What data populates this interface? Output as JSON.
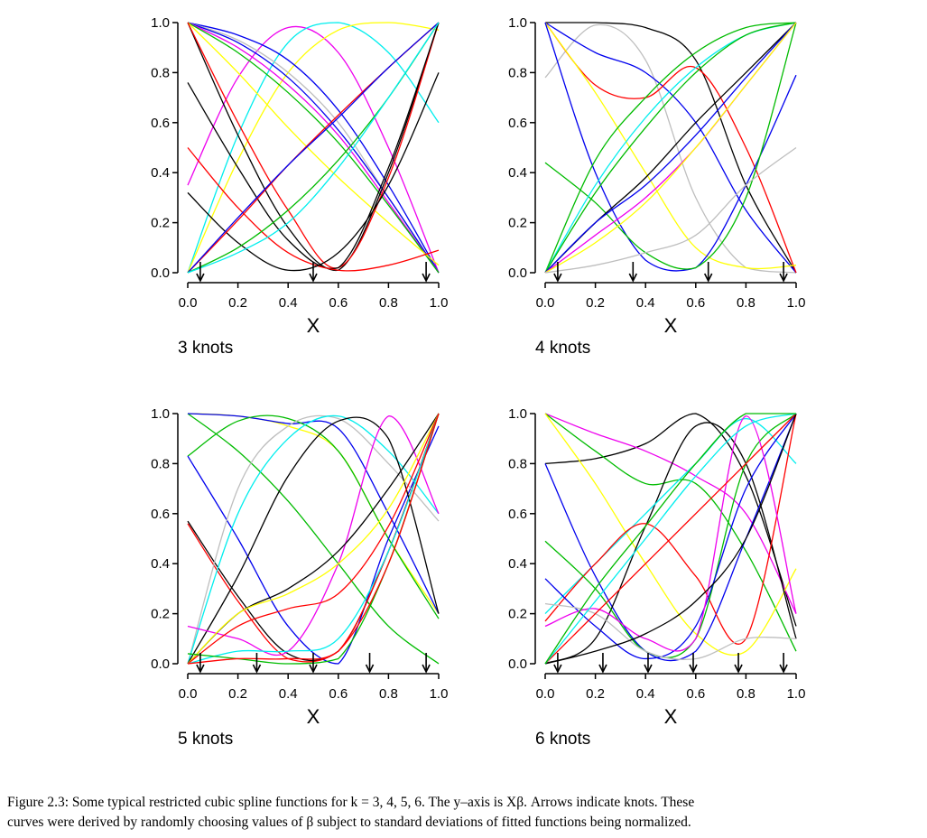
{
  "caption": {
    "line1": "Figure 2.3: Some typical restricted cubic spline functions for k = 3, 4, 5, 6. The y–axis is Xβ. Arrows indicate knots. These",
    "line2": "curves were derived by randomly choosing values of β subject to standard deviations of fitted functions being normalized."
  },
  "colors": {
    "black": "#000000",
    "red": "#ff0000",
    "green": "#00bb00",
    "blue": "#0000ee",
    "cyan": "#00eeee",
    "magenta": "#ee00ee",
    "yellow": "#ffff00",
    "gray": "#bebebe"
  },
  "chart_data": [
    {
      "type": "line",
      "title": "3 knots",
      "xlabel": "X",
      "ylabel": "",
      "xlim": [
        0,
        1
      ],
      "ylim": [
        0,
        1
      ],
      "xticks": [
        "0.0",
        "0.2",
        "0.4",
        "0.6",
        "0.8",
        "1.0"
      ],
      "yticks": [
        "0.0",
        "0.2",
        "0.4",
        "0.6",
        "0.8",
        "1.0"
      ],
      "knots": [
        0.05,
        0.5,
        0.95
      ],
      "x": [
        0,
        0.2,
        0.4,
        0.6,
        0.8,
        1.0
      ],
      "series": [
        {
          "color": "magenta",
          "values": [
            0.35,
            0.78,
            0.98,
            0.88,
            0.5,
            0.0
          ]
        },
        {
          "color": "cyan",
          "values": [
            0,
            0.55,
            0.92,
            1.0,
            0.88,
            0.6
          ]
        },
        {
          "color": "yellow",
          "values": [
            0,
            0.45,
            0.8,
            0.97,
            1.0,
            0.97
          ]
        },
        {
          "color": "blue",
          "values": [
            1,
            0.95,
            0.85,
            0.65,
            0.35,
            0
          ]
        },
        {
          "color": "gray",
          "values": [
            1,
            0.93,
            0.8,
            0.6,
            0.3,
            0
          ]
        },
        {
          "color": "blue",
          "values": [
            1,
            0.92,
            0.78,
            0.57,
            0.3,
            0
          ]
        },
        {
          "color": "magenta",
          "values": [
            1,
            0.9,
            0.75,
            0.55,
            0.28,
            0
          ]
        },
        {
          "color": "green",
          "values": [
            1,
            0.88,
            0.72,
            0.52,
            0.27,
            0
          ]
        },
        {
          "color": "yellow",
          "values": [
            1,
            0.8,
            0.58,
            0.38,
            0.2,
            0.03
          ]
        },
        {
          "color": "black",
          "values": [
            1,
            0.55,
            0.18,
            0.01,
            0.4,
            1
          ]
        },
        {
          "color": "red",
          "values": [
            1,
            0.6,
            0.25,
            0.02,
            0.38,
            1
          ]
        },
        {
          "color": "black",
          "values": [
            0.76,
            0.42,
            0.13,
            0.02,
            0.42,
            1
          ]
        },
        {
          "color": "red",
          "values": [
            0.5,
            0.26,
            0.08,
            0.01,
            0.03,
            0.09
          ]
        },
        {
          "color": "black",
          "values": [
            0.32,
            0.12,
            0.01,
            0.08,
            0.35,
            0.8
          ]
        },
        {
          "color": "red",
          "values": [
            0,
            0.21,
            0.43,
            0.63,
            0.82,
            1
          ]
        },
        {
          "color": "blue",
          "values": [
            0,
            0.22,
            0.43,
            0.62,
            0.82,
            1
          ]
        },
        {
          "color": "green",
          "values": [
            0,
            0.1,
            0.25,
            0.45,
            0.7,
            1
          ]
        },
        {
          "color": "cyan",
          "values": [
            0,
            0.08,
            0.2,
            0.42,
            0.7,
            1
          ]
        }
      ]
    },
    {
      "type": "line",
      "title": "4 knots",
      "xlabel": "X",
      "ylabel": "",
      "xlim": [
        0,
        1
      ],
      "ylim": [
        0,
        1
      ],
      "xticks": [
        "0.0",
        "0.2",
        "0.4",
        "0.6",
        "0.8",
        "1.0"
      ],
      "yticks": [
        "0.0",
        "0.2",
        "0.4",
        "0.6",
        "0.8",
        "1.0"
      ],
      "knots": [
        0.05,
        0.35,
        0.65,
        0.95
      ],
      "x": [
        0,
        0.2,
        0.4,
        0.6,
        0.8,
        1.0
      ],
      "series": [
        {
          "color": "gray",
          "values": [
            0.78,
            0.99,
            0.85,
            0.3,
            0.02,
            0.0
          ]
        },
        {
          "color": "black",
          "values": [
            1,
            1,
            0.98,
            0.85,
            0.35,
            0
          ]
        },
        {
          "color": "blue",
          "values": [
            1,
            0.88,
            0.8,
            0.6,
            0.25,
            0
          ]
        },
        {
          "color": "red",
          "values": [
            1,
            0.75,
            0.7,
            0.82,
            0.5,
            0
          ]
        },
        {
          "color": "yellow",
          "values": [
            1,
            0.72,
            0.4,
            0.1,
            0.02,
            0.03
          ]
        },
        {
          "color": "blue",
          "values": [
            1,
            0.4,
            0.05,
            0.02,
            0.35,
            0.79
          ]
        },
        {
          "color": "green",
          "values": [
            0.44,
            0.28,
            0.08,
            0.02,
            0.3,
            1
          ]
        },
        {
          "color": "green",
          "values": [
            0,
            0.45,
            0.7,
            0.88,
            0.98,
            1
          ]
        },
        {
          "color": "cyan",
          "values": [
            0,
            0.35,
            0.62,
            0.82,
            0.95,
            1
          ]
        },
        {
          "color": "green",
          "values": [
            0,
            0.32,
            0.58,
            0.8,
            0.95,
            1
          ]
        },
        {
          "color": "black",
          "values": [
            0,
            0.2,
            0.38,
            0.6,
            0.8,
            1
          ]
        },
        {
          "color": "blue",
          "values": [
            0,
            0.2,
            0.35,
            0.55,
            0.78,
            1
          ]
        },
        {
          "color": "magenta",
          "values": [
            0,
            0.15,
            0.3,
            0.5,
            0.75,
            1
          ]
        },
        {
          "color": "yellow",
          "values": [
            0,
            0.12,
            0.28,
            0.5,
            0.75,
            1
          ]
        },
        {
          "color": "gray",
          "values": [
            0,
            0.03,
            0.08,
            0.15,
            0.35,
            0.5
          ]
        }
      ]
    },
    {
      "type": "line",
      "title": "5 knots",
      "xlabel": "X",
      "ylabel": "",
      "xlim": [
        0,
        1
      ],
      "ylim": [
        0,
        1
      ],
      "xticks": [
        "0.0",
        "0.2",
        "0.4",
        "0.6",
        "0.8",
        "1.0"
      ],
      "yticks": [
        "0.0",
        "0.2",
        "0.4",
        "0.6",
        "0.8",
        "1.0"
      ],
      "knots": [
        0.05,
        0.275,
        0.5,
        0.725,
        0.95
      ],
      "x": [
        0,
        0.2,
        0.4,
        0.6,
        0.8,
        1.0
      ],
      "series": [
        {
          "color": "yellow",
          "values": [
            1,
            0.99,
            0.95,
            0.85,
            0.5,
            0.2
          ]
        },
        {
          "color": "green",
          "values": [
            1,
            0.85,
            0.65,
            0.4,
            0.15,
            0
          ]
        },
        {
          "color": "blue",
          "values": [
            1,
            0.99,
            0.96,
            0.94,
            0.6,
            0.2
          ]
        },
        {
          "color": "green",
          "values": [
            0.83,
            0.97,
            0.98,
            0.85,
            0.5,
            0.18
          ]
        },
        {
          "color": "blue",
          "values": [
            0.83,
            0.5,
            0.15,
            0.0,
            0.5,
            0.95
          ]
        },
        {
          "color": "black",
          "values": [
            0.57,
            0.27,
            0.04,
            0.05,
            0.45,
            1
          ]
        },
        {
          "color": "red",
          "values": [
            0.56,
            0.25,
            0.02,
            0.05,
            0.45,
            1
          ]
        },
        {
          "color": "gray",
          "values": [
            0,
            0.7,
            0.95,
            0.98,
            0.8,
            0.57
          ]
        },
        {
          "color": "cyan",
          "values": [
            0,
            0.6,
            0.9,
            0.99,
            0.85,
            0.6
          ]
        },
        {
          "color": "black",
          "values": [
            0,
            0.35,
            0.75,
            0.97,
            0.9,
            0.2
          ]
        },
        {
          "color": "magenta",
          "values": [
            0.15,
            0.1,
            0.05,
            0.4,
            0.99,
            0.6
          ]
        },
        {
          "color": "black",
          "values": [
            0,
            0.2,
            0.3,
            0.45,
            0.7,
            1
          ]
        },
        {
          "color": "yellow",
          "values": [
            0,
            0.2,
            0.28,
            0.4,
            0.62,
            1
          ]
        },
        {
          "color": "red",
          "values": [
            0,
            0.15,
            0.22,
            0.28,
            0.55,
            1
          ]
        },
        {
          "color": "cyan",
          "values": [
            0,
            0.05,
            0.05,
            0.1,
            0.45,
            1
          ]
        },
        {
          "color": "green",
          "values": [
            0.04,
            0.02,
            0.0,
            0.02,
            0.4,
            1
          ]
        },
        {
          "color": "red",
          "values": [
            0,
            0.02,
            0.02,
            0.05,
            0.4,
            1
          ]
        }
      ]
    },
    {
      "type": "line",
      "title": "6 knots",
      "xlabel": "X",
      "ylabel": "",
      "xlim": [
        0,
        1
      ],
      "ylim": [
        0,
        1
      ],
      "xticks": [
        "0.0",
        "0.2",
        "0.4",
        "0.6",
        "0.8",
        "1.0"
      ],
      "yticks": [
        "0.0",
        "0.2",
        "0.4",
        "0.6",
        "0.8",
        "1.0"
      ],
      "knots": [
        0.05,
        0.23,
        0.41,
        0.59,
        0.77,
        0.95
      ],
      "x": [
        0,
        0.2,
        0.4,
        0.6,
        0.8,
        1.0
      ],
      "series": [
        {
          "color": "black",
          "values": [
            0.8,
            0.82,
            0.88,
            1.0,
            0.75,
            0.15
          ]
        },
        {
          "color": "magenta",
          "values": [
            1,
            0.92,
            0.85,
            0.75,
            0.6,
            0.2
          ]
        },
        {
          "color": "green",
          "values": [
            1,
            0.85,
            0.72,
            0.72,
            0.45,
            0.05
          ]
        },
        {
          "color": "yellow",
          "values": [
            1,
            0.72,
            0.4,
            0.12,
            0.05,
            0.38
          ]
        },
        {
          "color": "blue",
          "values": [
            0.8,
            0.35,
            0.05,
            0.05,
            0.5,
            1
          ]
        },
        {
          "color": "black",
          "values": [
            0,
            0.1,
            0.55,
            0.95,
            0.8,
            0.1
          ]
        },
        {
          "color": "cyan",
          "values": [
            0.2,
            0.4,
            0.6,
            0.8,
            0.98,
            0.8
          ]
        },
        {
          "color": "red",
          "values": [
            0.17,
            0.4,
            0.56,
            0.35,
            0.1,
            1
          ]
        },
        {
          "color": "green",
          "values": [
            0.49,
            0.3,
            0.05,
            0.1,
            0.8,
            1
          ]
        },
        {
          "color": "blue",
          "values": [
            0.34,
            0.15,
            0.02,
            0.15,
            0.7,
            1
          ]
        },
        {
          "color": "gray",
          "values": [
            0.24,
            0.2,
            0.05,
            0.02,
            0.1,
            0.1
          ]
        },
        {
          "color": "magenta",
          "values": [
            0.15,
            0.22,
            0.1,
            0.1,
            0.99,
            0.2
          ]
        },
        {
          "color": "red",
          "values": [
            0,
            0.2,
            0.4,
            0.6,
            0.8,
            1
          ]
        },
        {
          "color": "black",
          "values": [
            0,
            0.05,
            0.12,
            0.25,
            0.5,
            1
          ]
        },
        {
          "color": "cyan",
          "values": [
            0,
            0.25,
            0.5,
            0.75,
            0.95,
            1
          ]
        },
        {
          "color": "green",
          "values": [
            0,
            0.3,
            0.55,
            0.8,
            1,
            1
          ]
        }
      ]
    }
  ]
}
